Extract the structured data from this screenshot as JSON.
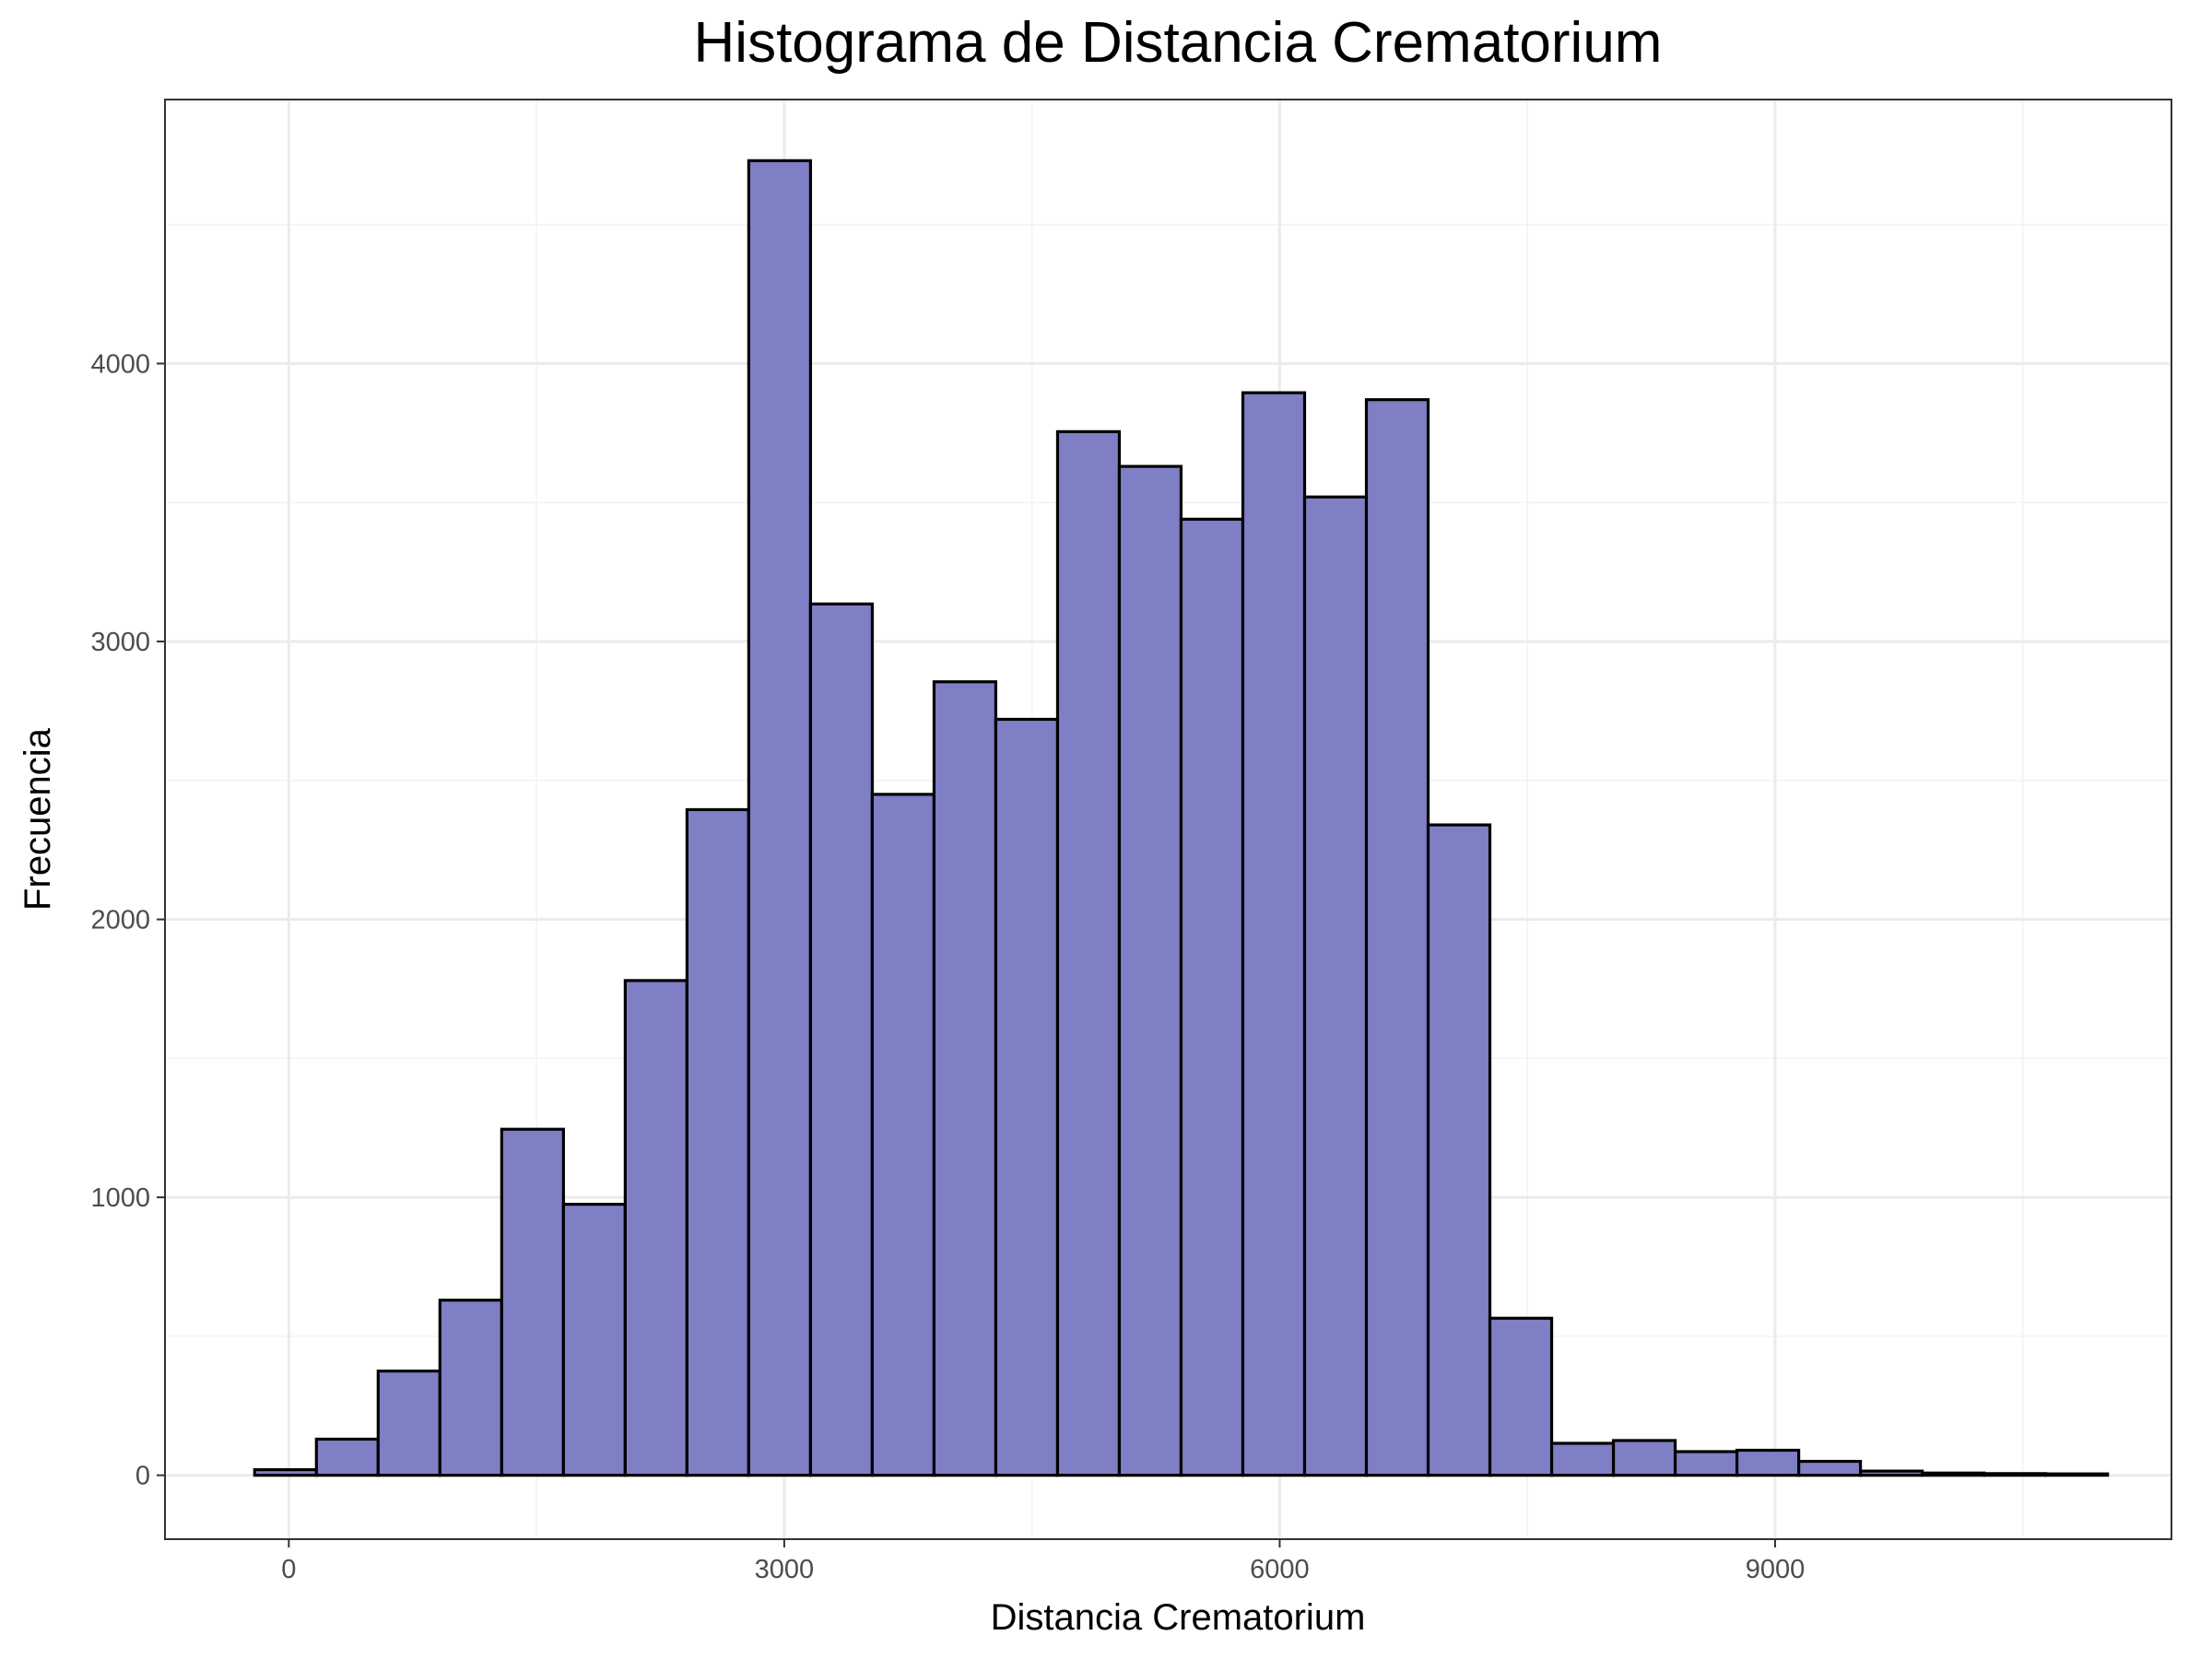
{
  "chart_data": {
    "type": "bar",
    "title": "Histograma de Distancia Crematorium",
    "xlabel": "Distancia Crematorium",
    "ylabel": "Frecuencia",
    "xlim": [
      -750,
      11400
    ],
    "ylim": [
      -230,
      4950
    ],
    "x_ticks": [
      0,
      3000,
      6000,
      9000
    ],
    "x_tick_labels": [
      "0",
      "3000",
      "6000",
      "9000"
    ],
    "y_ticks": [
      0,
      1000,
      2000,
      3000,
      4000
    ],
    "y_tick_labels": [
      "0",
      "1000",
      "2000",
      "3000",
      "4000"
    ],
    "grid": true,
    "legend": "none",
    "bin_width": 374,
    "bin_start": -207,
    "values": [
      20,
      130,
      375,
      630,
      1245,
      975,
      1780,
      2395,
      4730,
      3135,
      2450,
      2855,
      2720,
      3755,
      3630,
      3440,
      3895,
      3520,
      3870,
      2340,
      565,
      115,
      125,
      85,
      90,
      50,
      15,
      8,
      6,
      5
    ],
    "fill_color": "#7f7fc5",
    "edge_color": "#000000",
    "panel_border_color": "#333333",
    "grid_major_color": "#ebebeb",
    "grid_minor_color": "#f3f3f3"
  }
}
